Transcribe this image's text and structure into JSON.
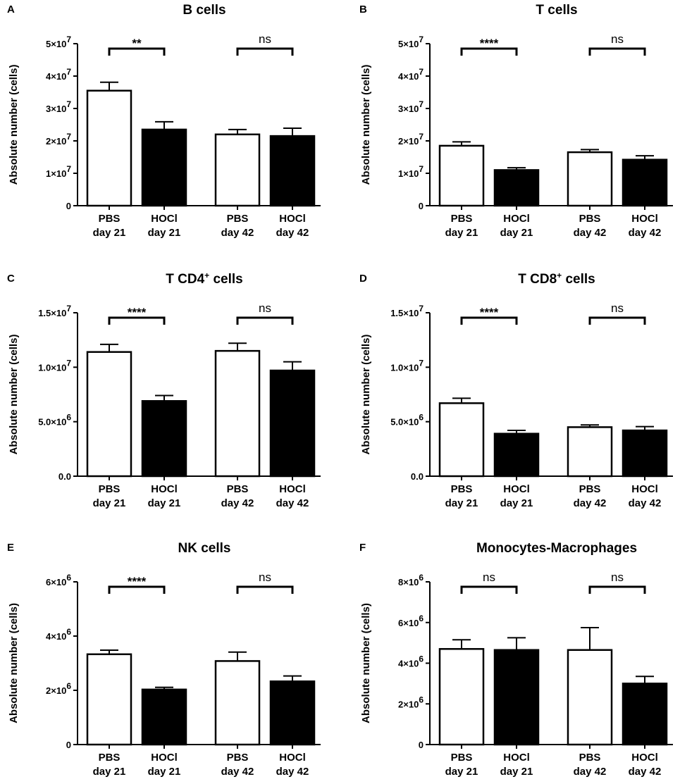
{
  "ylabel": "Absolute number (cells)",
  "colors": {
    "pbs": "#ffffff",
    "hocl": "#000000",
    "ink": "#000000"
  },
  "chart_data": [
    {
      "type": "bar",
      "letter": "A",
      "title": "B cells",
      "title_sup": "",
      "categories": [
        [
          "PBS",
          "day 21"
        ],
        [
          "HOCl",
          "day 21"
        ],
        [
          "PBS",
          "day 42"
        ],
        [
          "HOCl",
          "day 42"
        ]
      ],
      "values": [
        35500000,
        23500000,
        22000000,
        21500000
      ],
      "errors": [
        2600000,
        2400000,
        1500000,
        2400000
      ],
      "fills": [
        "pbs",
        "hocl",
        "pbs",
        "hocl"
      ],
      "ylim": [
        0,
        50000000
      ],
      "ticks": [
        0,
        10000000,
        20000000,
        30000000,
        40000000,
        50000000
      ],
      "tick_labels": [
        [
          "0",
          ""
        ],
        [
          "1×10",
          "7"
        ],
        [
          "2×10",
          "7"
        ],
        [
          "3×10",
          "7"
        ],
        [
          "4×10",
          "7"
        ],
        [
          "5×10",
          "7"
        ]
      ],
      "significance": [
        {
          "pair": [
            0,
            1
          ],
          "label": "**"
        },
        {
          "pair": [
            2,
            3
          ],
          "label": "ns"
        }
      ]
    },
    {
      "type": "bar",
      "letter": "B",
      "title": "T cells",
      "title_sup": "",
      "categories": [
        [
          "PBS",
          "day 21"
        ],
        [
          "HOCl",
          "day 21"
        ],
        [
          "PBS",
          "day 42"
        ],
        [
          "HOCl",
          "day 42"
        ]
      ],
      "values": [
        18500000,
        11000000,
        16500000,
        14200000
      ],
      "errors": [
        1200000,
        700000,
        800000,
        1200000
      ],
      "fills": [
        "pbs",
        "hocl",
        "pbs",
        "hocl"
      ],
      "ylim": [
        0,
        50000000
      ],
      "ticks": [
        0,
        10000000,
        20000000,
        30000000,
        40000000,
        50000000
      ],
      "tick_labels": [
        [
          "0",
          ""
        ],
        [
          "1×10",
          "7"
        ],
        [
          "2×10",
          "7"
        ],
        [
          "3×10",
          "7"
        ],
        [
          "4×10",
          "7"
        ],
        [
          "5×10",
          "7"
        ]
      ],
      "significance": [
        {
          "pair": [
            0,
            1
          ],
          "label": "****"
        },
        {
          "pair": [
            2,
            3
          ],
          "label": "ns"
        }
      ]
    },
    {
      "type": "bar",
      "letter": "C",
      "title": "T CD4",
      "title_sup": "+",
      "title_suffix": " cells",
      "categories": [
        [
          "PBS",
          "day 21"
        ],
        [
          "HOCl",
          "day 21"
        ],
        [
          "PBS",
          "day 42"
        ],
        [
          "HOCl",
          "day 42"
        ]
      ],
      "values": [
        11400000,
        6900000,
        11500000,
        9700000
      ],
      "errors": [
        700000,
        500000,
        700000,
        800000
      ],
      "fills": [
        "pbs",
        "hocl",
        "pbs",
        "hocl"
      ],
      "ylim": [
        0,
        15000000
      ],
      "ticks": [
        0,
        5000000,
        10000000,
        15000000
      ],
      "tick_labels": [
        [
          "0.0",
          ""
        ],
        [
          "5.0×10",
          "6"
        ],
        [
          "1.0×10",
          "7"
        ],
        [
          "1.5×10",
          "7"
        ]
      ],
      "significance": [
        {
          "pair": [
            0,
            1
          ],
          "label": "****"
        },
        {
          "pair": [
            2,
            3
          ],
          "label": "ns"
        }
      ]
    },
    {
      "type": "bar",
      "letter": "D",
      "title": "T CD8",
      "title_sup": "+",
      "title_suffix": " cells",
      "categories": [
        [
          "PBS",
          "day 21"
        ],
        [
          "HOCl",
          "day 21"
        ],
        [
          "PBS",
          "day 42"
        ],
        [
          "HOCl",
          "day 42"
        ]
      ],
      "values": [
        6700000,
        3900000,
        4500000,
        4200000
      ],
      "errors": [
        450000,
        300000,
        200000,
        350000
      ],
      "fills": [
        "pbs",
        "hocl",
        "pbs",
        "hocl"
      ],
      "ylim": [
        0,
        15000000
      ],
      "ticks": [
        0,
        5000000,
        10000000,
        15000000
      ],
      "tick_labels": [
        [
          "0.0",
          ""
        ],
        [
          "5.0×10",
          "6"
        ],
        [
          "1.0×10",
          "7"
        ],
        [
          "1.5×10",
          "7"
        ]
      ],
      "significance": [
        {
          "pair": [
            0,
            1
          ],
          "label": "****"
        },
        {
          "pair": [
            2,
            3
          ],
          "label": "ns"
        }
      ]
    },
    {
      "type": "bar",
      "letter": "E",
      "title": "NK cells",
      "title_sup": "",
      "categories": [
        [
          "PBS",
          "day 21"
        ],
        [
          "HOCl",
          "day 21"
        ],
        [
          "PBS",
          "day 42"
        ],
        [
          "HOCl",
          "day 42"
        ]
      ],
      "values": [
        3330000,
        2030000,
        3080000,
        2330000
      ],
      "errors": [
        150000,
        80000,
        330000,
        200000
      ],
      "fills": [
        "pbs",
        "hocl",
        "pbs",
        "hocl"
      ],
      "ylim": [
        0,
        6000000
      ],
      "ticks": [
        0,
        2000000,
        4000000,
        6000000
      ],
      "tick_labels": [
        [
          "0",
          ""
        ],
        [
          "2×10",
          "6"
        ],
        [
          "4×10",
          "6"
        ],
        [
          "6×10",
          "6"
        ]
      ],
      "significance": [
        {
          "pair": [
            0,
            1
          ],
          "label": "****"
        },
        {
          "pair": [
            2,
            3
          ],
          "label": "ns"
        }
      ]
    },
    {
      "type": "bar",
      "letter": "F",
      "title": "Monocytes-Macrophages",
      "title_sup": "",
      "categories": [
        [
          "PBS",
          "day 21"
        ],
        [
          "HOCl",
          "day 21"
        ],
        [
          "PBS",
          "day 42"
        ],
        [
          "HOCl",
          "day 42"
        ]
      ],
      "values": [
        4700000,
        4650000,
        4650000,
        3000000
      ],
      "errors": [
        450000,
        600000,
        1100000,
        350000
      ],
      "fills": [
        "pbs",
        "hocl",
        "pbs",
        "hocl"
      ],
      "ylim": [
        0,
        8000000
      ],
      "ticks": [
        0,
        2000000,
        4000000,
        6000000,
        8000000
      ],
      "tick_labels": [
        [
          "0",
          ""
        ],
        [
          "2×10",
          "6"
        ],
        [
          "4×10",
          "6"
        ],
        [
          "6×10",
          "6"
        ],
        [
          "8×10",
          "6"
        ]
      ],
      "significance": [
        {
          "pair": [
            0,
            1
          ],
          "label": "ns"
        },
        {
          "pair": [
            2,
            3
          ],
          "label": "ns"
        }
      ]
    }
  ]
}
